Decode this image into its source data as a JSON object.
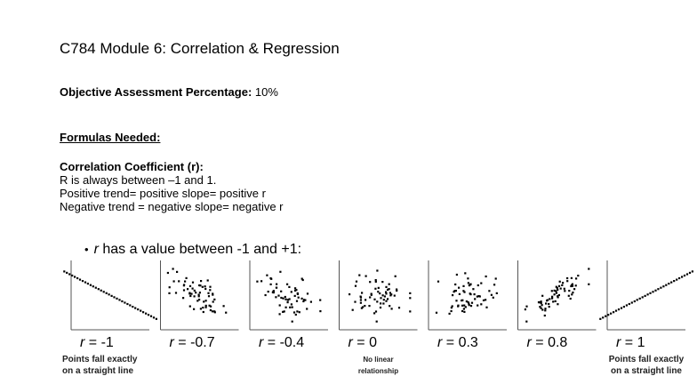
{
  "document": {
    "title": "C784 Module 6: Correlation & Regression",
    "objective_label": "Objective Assessment Percentage:",
    "objective_value": " 10%",
    "formulas_heading": "Formulas Needed:",
    "correlation": {
      "heading": "Correlation Coefficient (r):",
      "lines": [
        "R is always between –1 and 1.",
        "Positive trend= positive slope= positive r",
        "Negative trend = negative slope= negative r"
      ]
    }
  },
  "figure": {
    "bullet": "•",
    "header_r": "r",
    "header_text": " has a value between -1 and +1:",
    "panels": [
      {
        "r": -1,
        "r_prefix": "r",
        "r_label": " = -1",
        "note": [
          "Points fall exactly",
          "on a straight line"
        ]
      },
      {
        "r": -0.7,
        "r_prefix": "r",
        "r_label": " = -0.7",
        "note": []
      },
      {
        "r": -0.4,
        "r_prefix": "r",
        "r_label": " = -0.4",
        "note": []
      },
      {
        "r": 0,
        "r_prefix": "r",
        "r_label": " = 0",
        "note": [
          "No linear",
          "relationship"
        ]
      },
      {
        "r": 0.3,
        "r_prefix": "r",
        "r_label": " = 0.3",
        "note": []
      },
      {
        "r": 0.8,
        "r_prefix": "r",
        "r_label": " = 0.8",
        "note": []
      },
      {
        "r": 1,
        "r_prefix": "r",
        "r_label": " = 1",
        "note": [
          "Points fall exactly",
          "on a straight line"
        ]
      }
    ],
    "colors": {
      "ink": "#000000",
      "axis": "#555555",
      "note": "#222222"
    }
  }
}
